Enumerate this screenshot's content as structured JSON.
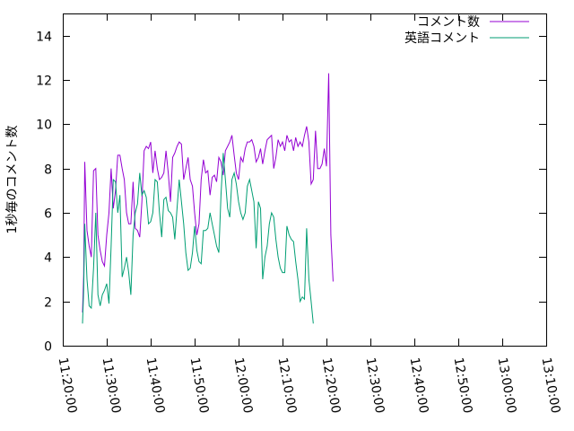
{
  "chart_data": {
    "type": "line",
    "title": "",
    "xlabel": "",
    "ylabel": "1秒毎のコメント数",
    "ylim": [
      0,
      15
    ],
    "yticks": [
      0,
      2,
      4,
      6,
      8,
      10,
      12,
      14
    ],
    "xlim": [
      "11:20:00",
      "13:10:00"
    ],
    "xtick_labels": [
      "11:20:00",
      "11:30:00",
      "11:40:00",
      "11:50:00",
      "12:00:00",
      "12:10:00",
      "12:20:00",
      "12:30:00",
      "12:40:00",
      "12:50:00",
      "13:00:00",
      "13:10:00"
    ],
    "grid": false,
    "legend": "top-right",
    "series": [
      {
        "name": "コメント数",
        "color": "#9400d3",
        "points": [
          [
            "11:24:30",
            1.5
          ],
          [
            "11:24:45",
            3.2
          ],
          [
            "11:25:00",
            8.3
          ],
          [
            "11:25:30",
            5.2
          ],
          [
            "11:26:00",
            4.5
          ],
          [
            "11:26:30",
            4.0
          ],
          [
            "11:27:00",
            7.9
          ],
          [
            "11:27:30",
            8.0
          ],
          [
            "11:28:00",
            5.0
          ],
          [
            "11:28:30",
            4.3
          ],
          [
            "11:29:00",
            3.8
          ],
          [
            "11:29:30",
            3.6
          ],
          [
            "11:30:00",
            5.0
          ],
          [
            "11:30:30",
            6.0
          ],
          [
            "11:31:00",
            8.0
          ],
          [
            "11:31:30",
            6.2
          ],
          [
            "11:32:00",
            7.0
          ],
          [
            "11:32:30",
            8.6
          ],
          [
            "11:33:00",
            8.6
          ],
          [
            "11:33:30",
            8.0
          ],
          [
            "11:34:00",
            7.5
          ],
          [
            "11:34:30",
            6.0
          ],
          [
            "11:35:00",
            5.5
          ],
          [
            "11:35:30",
            5.5
          ],
          [
            "11:36:00",
            7.4
          ],
          [
            "11:36:30",
            5.3
          ],
          [
            "11:37:00",
            5.2
          ],
          [
            "11:37:30",
            4.9
          ],
          [
            "11:38:00",
            6.5
          ],
          [
            "11:38:30",
            8.8
          ],
          [
            "11:39:00",
            9.0
          ],
          [
            "11:39:30",
            8.9
          ],
          [
            "11:40:00",
            9.2
          ],
          [
            "11:40:30",
            7.8
          ],
          [
            "11:41:00",
            8.8
          ],
          [
            "11:41:30",
            8.0
          ],
          [
            "11:42:00",
            7.5
          ],
          [
            "11:42:30",
            7.6
          ],
          [
            "11:43:00",
            7.8
          ],
          [
            "11:43:30",
            8.8
          ],
          [
            "11:44:00",
            7.8
          ],
          [
            "11:44:30",
            6.5
          ],
          [
            "11:45:00",
            8.5
          ],
          [
            "11:45:30",
            8.7
          ],
          [
            "11:46:00",
            9.0
          ],
          [
            "11:46:30",
            9.2
          ],
          [
            "11:47:00",
            9.1
          ],
          [
            "11:47:30",
            7.5
          ],
          [
            "11:48:00",
            8.0
          ],
          [
            "11:48:30",
            8.5
          ],
          [
            "11:49:00",
            7.5
          ],
          [
            "11:49:30",
            7.2
          ],
          [
            "11:50:00",
            6.0
          ],
          [
            "11:50:30",
            5.0
          ],
          [
            "11:51:00",
            5.5
          ],
          [
            "11:51:30",
            7.5
          ],
          [
            "11:52:00",
            8.4
          ],
          [
            "11:52:30",
            7.8
          ],
          [
            "11:53:00",
            7.9
          ],
          [
            "11:53:30",
            6.8
          ],
          [
            "11:54:00",
            7.6
          ],
          [
            "11:54:30",
            7.7
          ],
          [
            "11:55:00",
            7.4
          ],
          [
            "11:55:30",
            8.5
          ],
          [
            "11:56:00",
            8.3
          ],
          [
            "11:56:30",
            7.7
          ],
          [
            "11:57:00",
            8.8
          ],
          [
            "11:57:30",
            9.0
          ],
          [
            "11:58:00",
            9.2
          ],
          [
            "11:58:30",
            9.5
          ],
          [
            "11:59:00",
            8.6
          ],
          [
            "11:59:30",
            7.8
          ],
          [
            "12:00:00",
            7.5
          ],
          [
            "12:00:30",
            8.5
          ],
          [
            "12:01:00",
            8.3
          ],
          [
            "12:01:30",
            8.9
          ],
          [
            "12:02:00",
            9.2
          ],
          [
            "12:02:30",
            9.2
          ],
          [
            "12:03:00",
            9.3
          ],
          [
            "12:03:30",
            9.0
          ],
          [
            "12:04:00",
            8.3
          ],
          [
            "12:04:30",
            8.5
          ],
          [
            "12:05:00",
            8.9
          ],
          [
            "12:05:30",
            8.2
          ],
          [
            "12:06:00",
            8.8
          ],
          [
            "12:06:30",
            9.3
          ],
          [
            "12:07:00",
            9.4
          ],
          [
            "12:07:30",
            9.5
          ],
          [
            "12:08:00",
            8.0
          ],
          [
            "12:08:30",
            8.5
          ],
          [
            "12:09:00",
            9.3
          ],
          [
            "12:09:30",
            9.0
          ],
          [
            "12:10:00",
            9.2
          ],
          [
            "12:10:30",
            8.8
          ],
          [
            "12:11:00",
            9.5
          ],
          [
            "12:11:30",
            9.2
          ],
          [
            "12:12:00",
            9.3
          ],
          [
            "12:12:30",
            8.8
          ],
          [
            "12:13:00",
            9.4
          ],
          [
            "12:13:30",
            9.0
          ],
          [
            "12:14:00",
            9.2
          ],
          [
            "12:14:30",
            9.0
          ],
          [
            "12:15:00",
            9.5
          ],
          [
            "12:15:30",
            9.9
          ],
          [
            "12:16:00",
            9.2
          ],
          [
            "12:16:30",
            7.3
          ],
          [
            "12:17:00",
            7.5
          ],
          [
            "12:17:30",
            9.7
          ],
          [
            "12:18:00",
            8.0
          ],
          [
            "12:18:30",
            8.0
          ],
          [
            "12:19:00",
            8.2
          ],
          [
            "12:19:30",
            8.9
          ],
          [
            "12:20:00",
            8.1
          ],
          [
            "12:20:30",
            12.3
          ],
          [
            "12:21:00",
            5.0
          ],
          [
            "12:21:30",
            2.9
          ]
        ]
      },
      {
        "name": "英語コメント",
        "color": "#009e73",
        "points": [
          [
            "11:24:30",
            1.0
          ],
          [
            "11:24:45",
            2.5
          ],
          [
            "11:25:00",
            5.5
          ],
          [
            "11:25:30",
            3.0
          ],
          [
            "11:26:00",
            1.8
          ],
          [
            "11:26:30",
            1.7
          ],
          [
            "11:27:00",
            3.5
          ],
          [
            "11:27:30",
            6.0
          ],
          [
            "11:28:00",
            2.3
          ],
          [
            "11:28:30",
            1.8
          ],
          [
            "11:29:00",
            2.3
          ],
          [
            "11:29:30",
            2.5
          ],
          [
            "11:30:00",
            2.8
          ],
          [
            "11:30:30",
            1.9
          ],
          [
            "11:31:00",
            4.5
          ],
          [
            "11:31:30",
            7.5
          ],
          [
            "11:32:00",
            7.4
          ],
          [
            "11:32:30",
            6.0
          ],
          [
            "11:33:00",
            6.8
          ],
          [
            "11:33:30",
            3.1
          ],
          [
            "11:34:00",
            3.5
          ],
          [
            "11:34:30",
            4.0
          ],
          [
            "11:35:00",
            3.3
          ],
          [
            "11:35:30",
            2.3
          ],
          [
            "11:36:00",
            5.0
          ],
          [
            "11:36:30",
            6.0
          ],
          [
            "11:37:00",
            6.4
          ],
          [
            "11:37:30",
            7.8
          ],
          [
            "11:38:00",
            6.8
          ],
          [
            "11:38:30",
            7.0
          ],
          [
            "11:39:00",
            6.7
          ],
          [
            "11:39:30",
            5.5
          ],
          [
            "11:40:00",
            5.6
          ],
          [
            "11:40:30",
            6.0
          ],
          [
            "11:41:00",
            7.5
          ],
          [
            "11:41:30",
            7.4
          ],
          [
            "11:42:00",
            6.0
          ],
          [
            "11:42:30",
            4.9
          ],
          [
            "11:43:00",
            6.6
          ],
          [
            "11:43:30",
            6.7
          ],
          [
            "11:44:00",
            6.1
          ],
          [
            "11:44:30",
            6.0
          ],
          [
            "11:45:00",
            5.8
          ],
          [
            "11:45:30",
            4.8
          ],
          [
            "11:46:00",
            6.2
          ],
          [
            "11:46:30",
            7.5
          ],
          [
            "11:47:00",
            6.5
          ],
          [
            "11:47:30",
            5.5
          ],
          [
            "11:48:00",
            4.2
          ],
          [
            "11:48:30",
            3.4
          ],
          [
            "11:49:00",
            3.5
          ],
          [
            "11:49:30",
            4.2
          ],
          [
            "11:50:00",
            5.4
          ],
          [
            "11:50:30",
            4.3
          ],
          [
            "11:51:00",
            3.8
          ],
          [
            "11:51:30",
            3.7
          ],
          [
            "11:52:00",
            5.2
          ],
          [
            "11:52:30",
            5.2
          ],
          [
            "11:53:00",
            5.3
          ],
          [
            "11:53:30",
            6.0
          ],
          [
            "11:54:00",
            5.5
          ],
          [
            "11:54:30",
            5.0
          ],
          [
            "11:55:00",
            4.5
          ],
          [
            "11:55:30",
            4.2
          ],
          [
            "11:56:00",
            6.8
          ],
          [
            "11:56:30",
            8.7
          ],
          [
            "11:57:00",
            7.5
          ],
          [
            "11:57:30",
            6.2
          ],
          [
            "11:58:00",
            5.8
          ],
          [
            "11:58:30",
            7.5
          ],
          [
            "11:59:00",
            7.8
          ],
          [
            "11:59:30",
            7.3
          ],
          [
            "12:00:00",
            6.5
          ],
          [
            "12:00:30",
            6.0
          ],
          [
            "12:01:00",
            5.7
          ],
          [
            "12:01:30",
            6.0
          ],
          [
            "12:02:00",
            7.2
          ],
          [
            "12:02:30",
            7.5
          ],
          [
            "12:03:00",
            7.0
          ],
          [
            "12:03:30",
            6.5
          ],
          [
            "12:04:00",
            4.4
          ],
          [
            "12:04:30",
            6.5
          ],
          [
            "12:05:00",
            6.2
          ],
          [
            "12:05:30",
            3.0
          ],
          [
            "12:06:00",
            4.0
          ],
          [
            "12:06:30",
            4.5
          ],
          [
            "12:07:00",
            5.5
          ],
          [
            "12:07:30",
            6.0
          ],
          [
            "12:08:00",
            5.8
          ],
          [
            "12:08:30",
            4.8
          ],
          [
            "12:09:00",
            4.0
          ],
          [
            "12:09:30",
            3.5
          ],
          [
            "12:10:00",
            3.3
          ],
          [
            "12:10:30",
            3.3
          ],
          [
            "12:11:00",
            5.4
          ],
          [
            "12:11:30",
            5.0
          ],
          [
            "12:12:00",
            4.8
          ],
          [
            "12:12:30",
            4.7
          ],
          [
            "12:13:00",
            3.8
          ],
          [
            "12:13:30",
            3.0
          ],
          [
            "12:14:00",
            2.0
          ],
          [
            "12:14:30",
            2.2
          ],
          [
            "12:15:00",
            2.1
          ],
          [
            "12:15:30",
            5.3
          ],
          [
            "12:16:00",
            3.0
          ],
          [
            "12:16:30",
            2.0
          ],
          [
            "12:17:00",
            1.0
          ]
        ]
      }
    ]
  }
}
